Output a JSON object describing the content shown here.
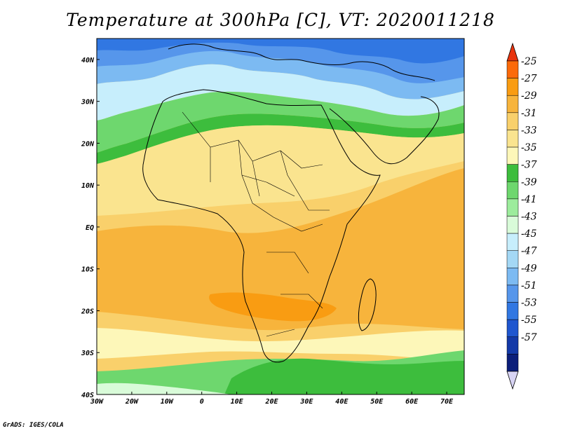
{
  "title": "Temperature at 300hPa [C], VT: 2020011218",
  "credit": "GrADS: IGES/COLA",
  "map": {
    "lon_range": [
      -30,
      75
    ],
    "lat_range": [
      -40,
      45
    ],
    "lon_ticks": [
      {
        "value": -30,
        "label": "30W"
      },
      {
        "value": -20,
        "label": "20W"
      },
      {
        "value": -10,
        "label": "10W"
      },
      {
        "value": 0,
        "label": "0"
      },
      {
        "value": 10,
        "label": "10E"
      },
      {
        "value": 20,
        "label": "20E"
      },
      {
        "value": 30,
        "label": "30E"
      },
      {
        "value": 40,
        "label": "40E"
      },
      {
        "value": 50,
        "label": "50E"
      },
      {
        "value": 60,
        "label": "60E"
      },
      {
        "value": 70,
        "label": "70E"
      }
    ],
    "lat_ticks": [
      {
        "value": 40,
        "label": "40N"
      },
      {
        "value": 30,
        "label": "30N"
      },
      {
        "value": 20,
        "label": "20N"
      },
      {
        "value": 10,
        "label": "10N"
      },
      {
        "value": 0,
        "label": "EQ"
      },
      {
        "value": -10,
        "label": "10S"
      },
      {
        "value": -20,
        "label": "20S"
      },
      {
        "value": -30,
        "label": "30S"
      },
      {
        "value": -40,
        "label": "40S"
      }
    ]
  },
  "colorbar": {
    "labels": [
      "-25",
      "-27",
      "-29",
      "-31",
      "-33",
      "-35",
      "-37",
      "-39",
      "-41",
      "-43",
      "-45",
      "-47",
      "-49",
      "-51",
      "-53",
      "-55",
      "-57"
    ],
    "colors": [
      "#e8340e",
      "#fb6a0a",
      "#f99c12",
      "#f7b43c",
      "#f9d06b",
      "#fae48f",
      "#fdf7b9",
      "#3dbd3d",
      "#6ed76e",
      "#9cec9c",
      "#d9fbd9",
      "#c7eefc",
      "#a4d8f5",
      "#7cbaf2",
      "#5696eb",
      "#3177e2",
      "#1f56cf",
      "#1339a8",
      "#0b1e7a",
      "#d8d4f4"
    ]
  }
}
